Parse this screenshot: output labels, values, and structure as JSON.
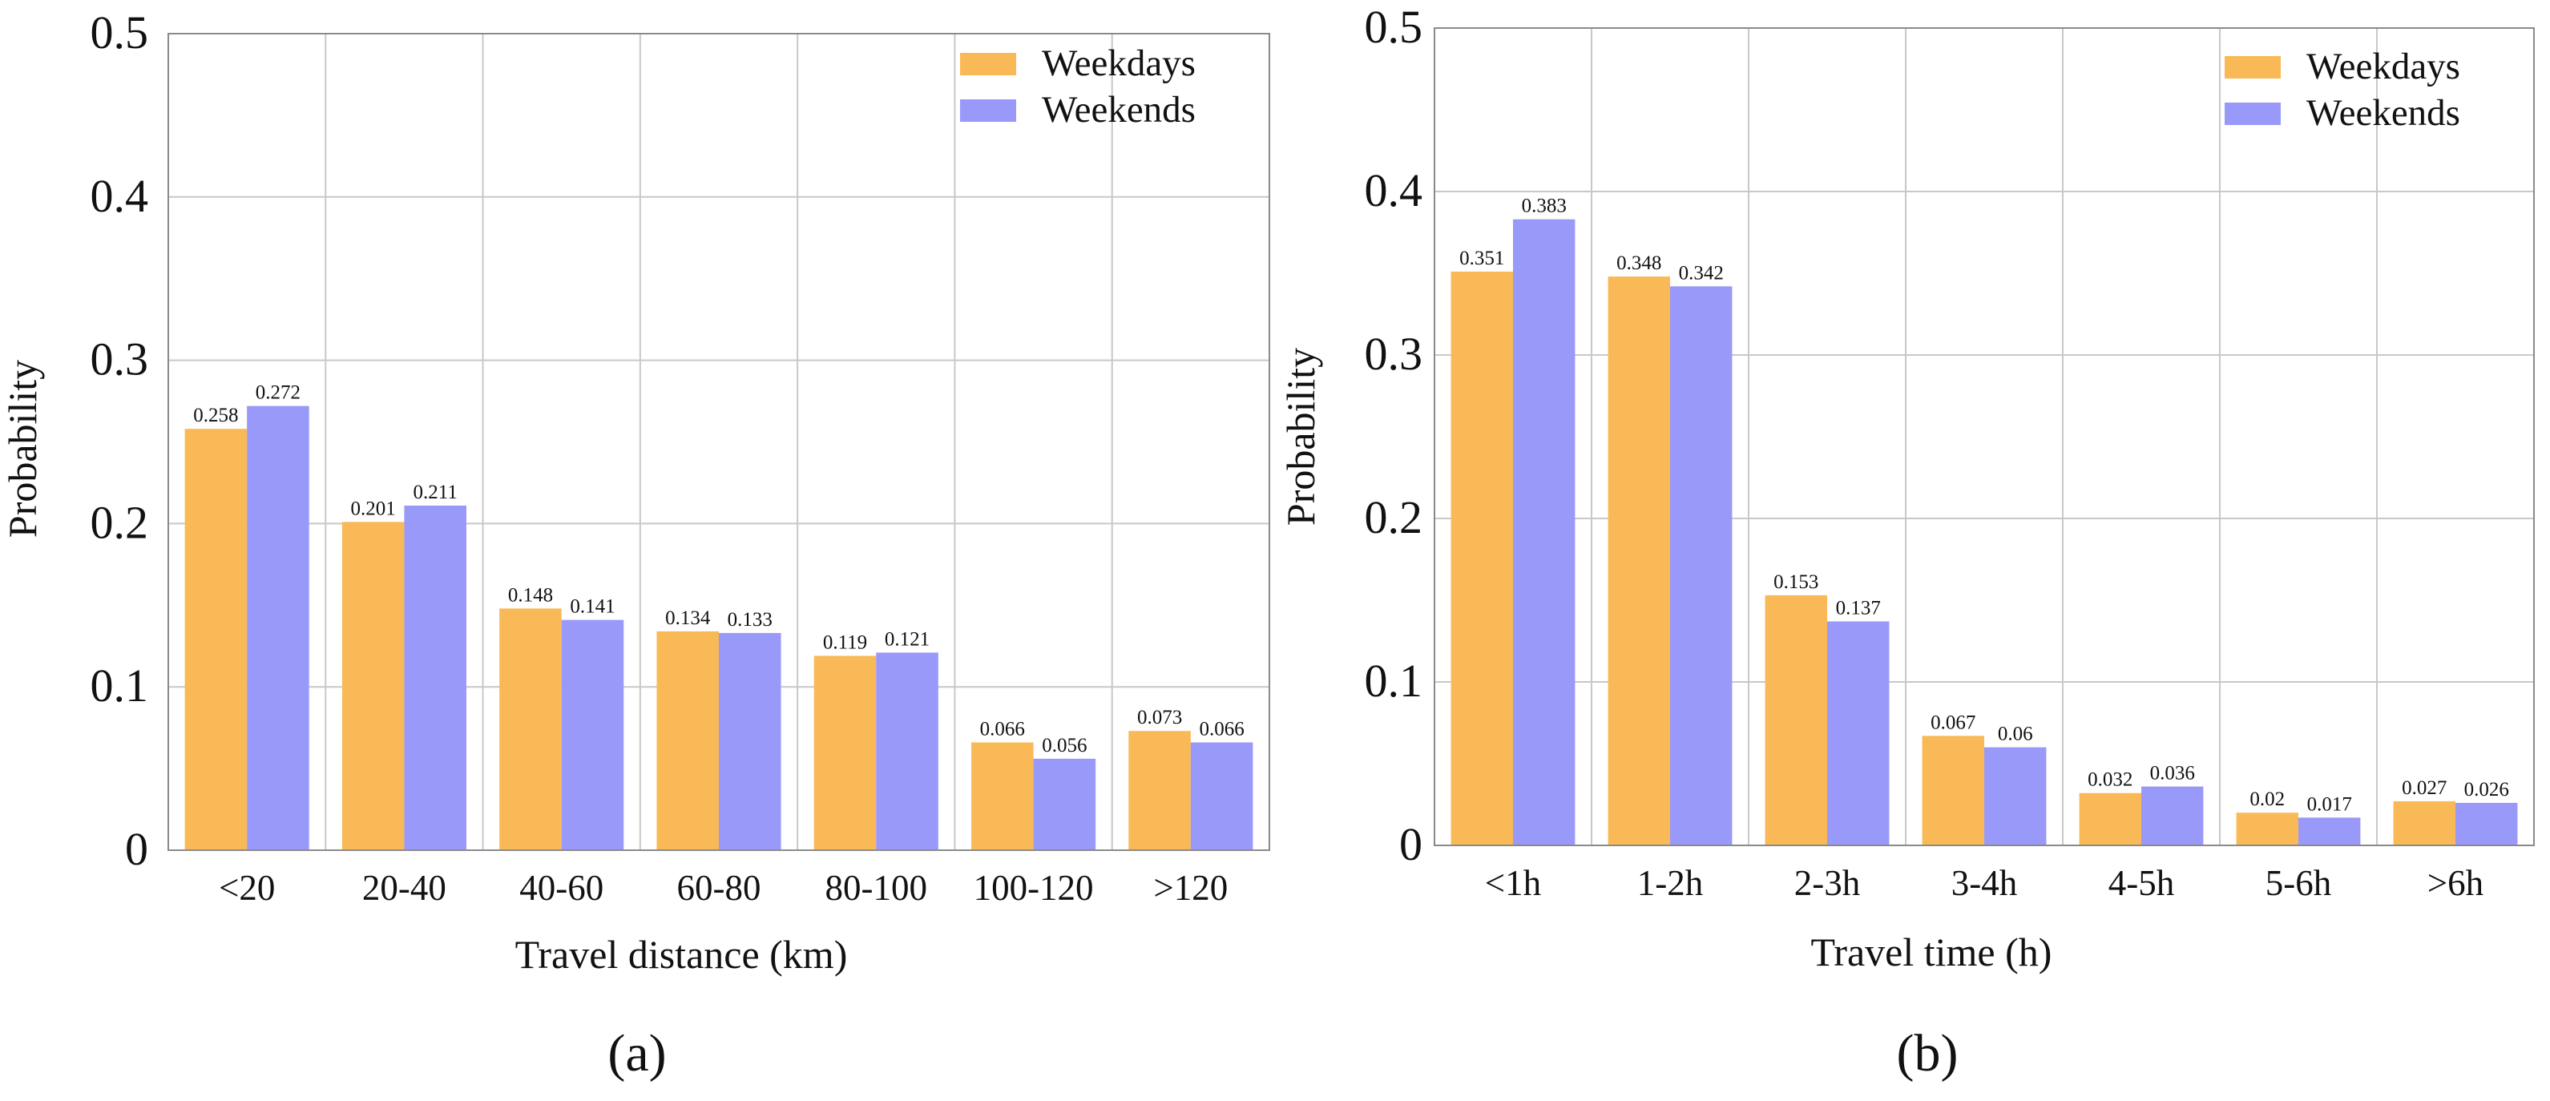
{
  "colors": {
    "weekdays": "#f9b956",
    "weekends": "#9999fa"
  },
  "chart_data": [
    {
      "type": "bar",
      "panel_label": "(a)",
      "xlabel": "Travel distance (km)",
      "ylabel": "Probability",
      "ylim": [
        0,
        0.5
      ],
      "yticks": [
        "0",
        "0.1",
        "0.2",
        "0.3",
        "0.4",
        "0.5"
      ],
      "grid": true,
      "legend_position": "top-right",
      "categories": [
        "<20",
        "20-40",
        "40-60",
        "60-80",
        "80-100",
        "100-120",
        ">120"
      ],
      "series": [
        {
          "name": "Weekdays",
          "values": [
            0.258,
            0.201,
            0.148,
            0.134,
            0.119,
            0.066,
            0.073
          ],
          "labels": [
            "0.258",
            "0.201",
            "0.148",
            "0.134",
            "0.119",
            "0.066",
            "0.073"
          ]
        },
        {
          "name": "Weekends",
          "values": [
            0.272,
            0.211,
            0.141,
            0.133,
            0.121,
            0.056,
            0.066
          ],
          "labels": [
            "0.272",
            "0.211",
            "0.141",
            "0.133",
            "0.121",
            "0.056",
            "0.066"
          ]
        }
      ]
    },
    {
      "type": "bar",
      "panel_label": "(b)",
      "xlabel": "Travel time (h)",
      "ylabel": "Probability",
      "ylim": [
        0,
        0.5
      ],
      "yticks": [
        "0",
        "0.1",
        "0.2",
        "0.3",
        "0.4",
        "0.5"
      ],
      "grid": true,
      "legend_position": "top-right",
      "categories": [
        "<1h",
        "1-2h",
        "2-3h",
        "3-4h",
        "4-5h",
        "5-6h",
        ">6h"
      ],
      "series": [
        {
          "name": "Weekdays",
          "values": [
            0.351,
            0.348,
            0.153,
            0.067,
            0.032,
            0.02,
            0.027
          ],
          "labels": [
            "0.351",
            "0.348",
            "0.153",
            "0.067",
            "0.032",
            "0.02",
            "0.027"
          ]
        },
        {
          "name": "Weekends",
          "values": [
            0.383,
            0.342,
            0.137,
            0.06,
            0.036,
            0.017,
            0.026
          ],
          "labels": [
            "0.383",
            "0.342",
            "0.137",
            "0.06",
            "0.036",
            "0.017",
            "0.026"
          ]
        }
      ]
    }
  ]
}
